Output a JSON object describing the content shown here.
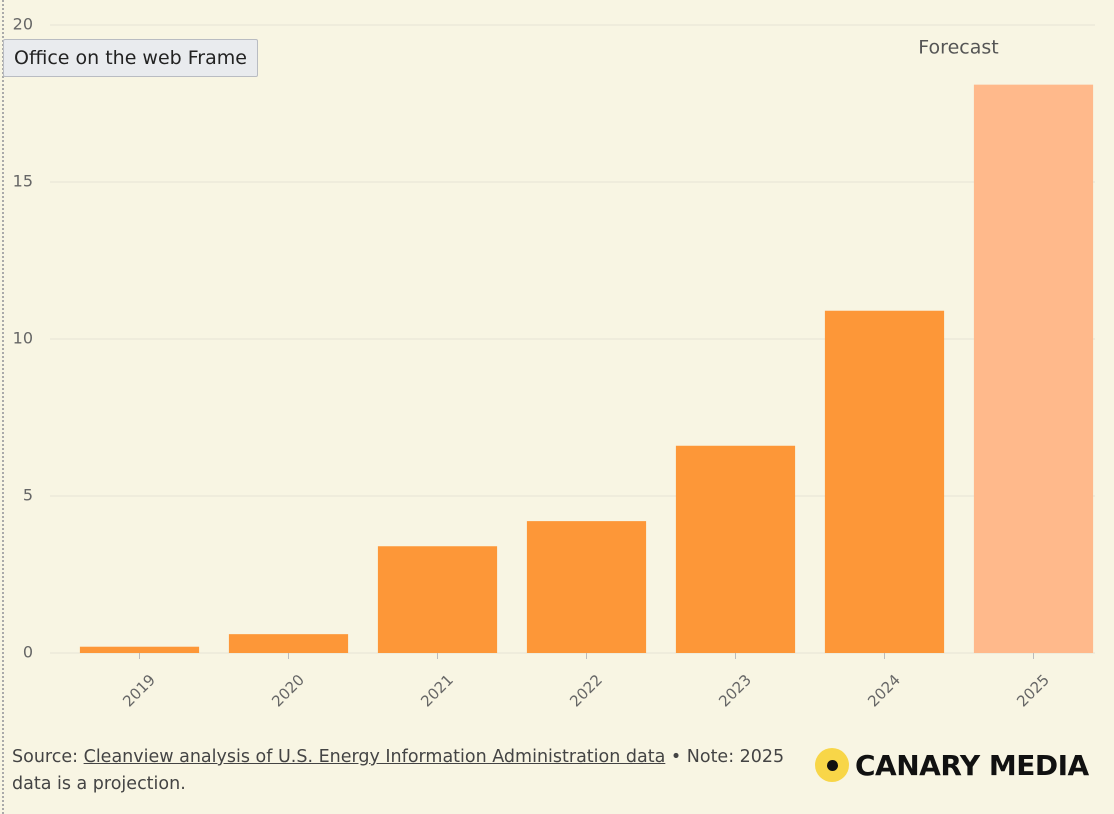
{
  "chart_data": {
    "type": "bar",
    "categories": [
      "2019",
      "2020",
      "2021",
      "2022",
      "2023",
      "2024",
      "2025"
    ],
    "values": [
      0.2,
      0.6,
      3.4,
      4.2,
      6.6,
      10.9,
      18.1
    ],
    "colors": [
      "#fd9738",
      "#fd9738",
      "#fd9738",
      "#fd9738",
      "#fd9738",
      "#fd9738",
      "#ffb98b"
    ],
    "ylim": [
      0,
      20
    ],
    "yticks": [
      0,
      5,
      10,
      15,
      20
    ],
    "grid": true,
    "annotation": {
      "text": "Forecast",
      "category": 6
    }
  },
  "tooltip": "Office on the web Frame",
  "footer": {
    "source_label": "Source:",
    "source_link": "Cleanview analysis of U.S. Energy Information Administration data",
    "note": "• Note: 2025 data is a projection."
  },
  "logo": "CANARY MEDIA"
}
